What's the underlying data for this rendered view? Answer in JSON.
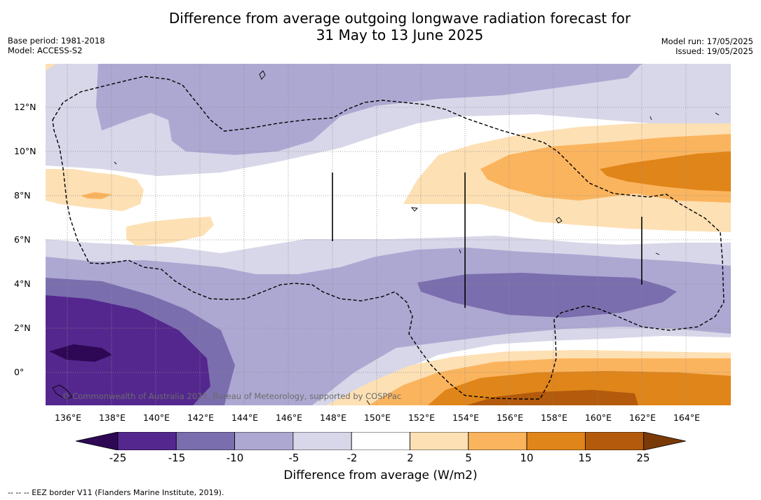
{
  "title_line1": "Difference from average outgoing longwave radiation forecast for",
  "title_line2": "31 May to 13 June 2025",
  "meta_left": {
    "base_period": "Base period: 1981-2018",
    "model": "Model: ACCESS-S2"
  },
  "meta_right": {
    "model_run": "Model run: 17/05/2025",
    "issued": "Issued: 19/05/2025"
  },
  "copyright": "© Commonwealth of Australia 2025, Bureau of Meteorology, supported by COSPPac",
  "lat_labels": [
    "12°N",
    "10°N",
    "8°N",
    "6°N",
    "4°N",
    "2°N",
    "0°"
  ],
  "lon_labels": [
    "136°E",
    "138°E",
    "140°E",
    "142°E",
    "144°E",
    "146°E",
    "148°E",
    "150°E",
    "152°E",
    "154°E",
    "156°E",
    "158°E",
    "160°E",
    "162°E",
    "164°E"
  ],
  "colorbar": {
    "label": "Difference from average (W/m2)",
    "ticks": [
      "-25",
      "-15",
      "-10",
      "-5",
      "-2",
      "2",
      "5",
      "10",
      "15",
      "25"
    ],
    "colors": [
      "#2e0854",
      "#54278f",
      "#7b6eae",
      "#ada8d2",
      "#d8d7e9",
      "#ffffff",
      "#fde0b4",
      "#fbb45e",
      "#e08519",
      "#b35a0c",
      "#7a3a08"
    ]
  },
  "footnote": "-- -- -- EEZ border V11 (Flanders Marine Institute, 2019)."
}
